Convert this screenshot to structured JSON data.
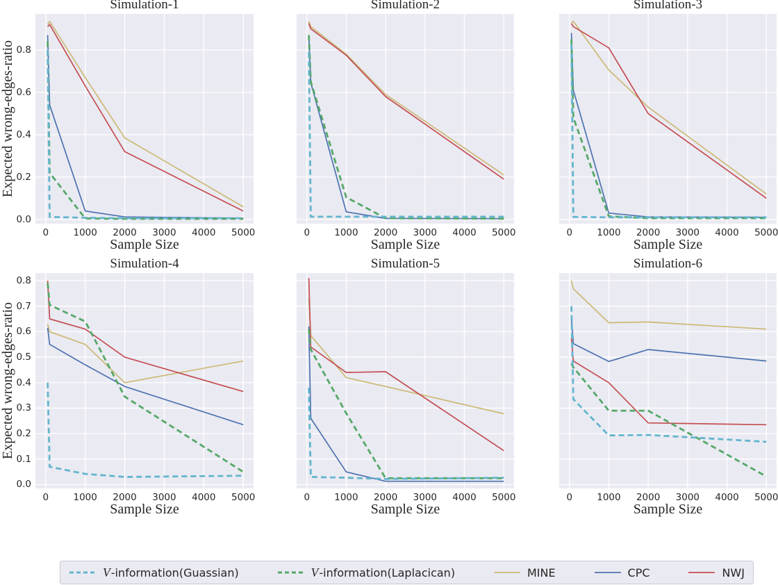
{
  "legend": {
    "entries": [
      {
        "id": "gaussian",
        "cal": "V",
        "text": "-information(Guassian)",
        "color": "#64B5CD",
        "dashed": true
      },
      {
        "id": "laplacian",
        "cal": "V",
        "text": "-information(Laplacican)",
        "color": "#55A868",
        "dashed": true
      },
      {
        "id": "mine",
        "cal": "",
        "text": "MINE",
        "color": "#CCB974",
        "dashed": false
      },
      {
        "id": "cpc",
        "cal": "",
        "text": "CPC",
        "color": "#4C72B0",
        "dashed": false
      },
      {
        "id": "nwj",
        "cal": "",
        "text": "NWJ",
        "color": "#C44E52",
        "dashed": false
      }
    ],
    "position": "lower center"
  },
  "chart_data": [
    {
      "type": "line",
      "title": "Simulation-1",
      "xlabel": "Sample Size",
      "ylabel": "Expected wrong-edges-ratio",
      "x": [
        50,
        100,
        1000,
        2000,
        5000
      ],
      "xlim": [
        -260,
        5260
      ],
      "ylim": [
        -0.02,
        0.97
      ],
      "x_ticks": [
        0,
        1000,
        2000,
        3000,
        4000,
        5000
      ],
      "y_ticks": [
        0.0,
        0.2,
        0.4,
        0.6,
        0.8
      ],
      "grid": true,
      "series": [
        {
          "id": "gaussian",
          "name": "V-information(Guassian)",
          "color": "#64B5CD",
          "style": "dashed",
          "values": [
            0.8,
            0.012,
            0.008,
            0.006,
            0.006
          ]
        },
        {
          "id": "laplacian",
          "name": "V-information(Laplacican)",
          "color": "#55A868",
          "style": "dashed",
          "values": [
            0.84,
            0.22,
            0.005,
            0.003,
            0.003
          ]
        },
        {
          "id": "mine",
          "name": "MINE",
          "color": "#CCB974",
          "style": "solid",
          "values": [
            0.92,
            0.935,
            0.67,
            0.385,
            0.06
          ]
        },
        {
          "id": "cpc",
          "name": "CPC",
          "color": "#4C72B0",
          "style": "solid",
          "values": [
            0.87,
            0.54,
            0.04,
            0.012,
            0.006
          ]
        },
        {
          "id": "nwj",
          "name": "NWJ",
          "color": "#C44E52",
          "style": "solid",
          "values": [
            0.91,
            0.92,
            0.63,
            0.32,
            0.04
          ]
        }
      ]
    },
    {
      "type": "line",
      "title": "Simulation-2",
      "xlabel": "Sample Size",
      "x": [
        50,
        100,
        1000,
        2000,
        5000
      ],
      "xlim": [
        -260,
        5260
      ],
      "ylim": [
        -0.02,
        0.97
      ],
      "x_ticks": [
        0,
        1000,
        2000,
        3000,
        4000,
        5000
      ],
      "y_ticks": [
        0.0,
        0.2,
        0.4,
        0.6,
        0.8
      ],
      "grid": true,
      "series": [
        {
          "id": "gaussian",
          "name": "V-information(Guassian)",
          "color": "#64B5CD",
          "style": "dashed",
          "values": [
            0.79,
            0.013,
            0.013,
            0.013,
            0.013
          ]
        },
        {
          "id": "laplacian",
          "name": "V-information(Laplacican)",
          "color": "#55A868",
          "style": "dashed",
          "values": [
            0.87,
            0.65,
            0.105,
            0.006,
            0.004
          ]
        },
        {
          "id": "mine",
          "name": "MINE",
          "color": "#CCB974",
          "style": "solid",
          "values": [
            0.935,
            0.91,
            0.78,
            0.59,
            0.21
          ]
        },
        {
          "id": "cpc",
          "name": "CPC",
          "color": "#4C72B0",
          "style": "solid",
          "values": [
            0.87,
            0.645,
            0.036,
            0.005,
            0.004
          ]
        },
        {
          "id": "nwj",
          "name": "NWJ",
          "color": "#C44E52",
          "style": "solid",
          "values": [
            0.925,
            0.9,
            0.775,
            0.58,
            0.19
          ]
        }
      ]
    },
    {
      "type": "line",
      "title": "Simulation-3",
      "xlabel": "Sample Size",
      "x": [
        50,
        100,
        1000,
        2000,
        5000
      ],
      "xlim": [
        -260,
        5260
      ],
      "ylim": [
        -0.02,
        0.97
      ],
      "x_ticks": [
        0,
        1000,
        2000,
        3000,
        4000,
        5000
      ],
      "y_ticks": [
        0.0,
        0.2,
        0.4,
        0.6,
        0.8
      ],
      "grid": true,
      "series": [
        {
          "id": "gaussian",
          "name": "V-information(Guassian)",
          "color": "#64B5CD",
          "style": "dashed",
          "values": [
            0.825,
            0.012,
            0.01,
            0.01,
            0.01
          ]
        },
        {
          "id": "laplacian",
          "name": "V-information(Laplacican)",
          "color": "#55A868",
          "style": "dashed",
          "values": [
            0.85,
            0.48,
            0.015,
            0.006,
            0.006
          ]
        },
        {
          "id": "mine",
          "name": "MINE",
          "color": "#CCB974",
          "style": "solid",
          "values": [
            0.93,
            0.935,
            0.705,
            0.53,
            0.12
          ]
        },
        {
          "id": "cpc",
          "name": "CPC",
          "color": "#4C72B0",
          "style": "solid",
          "values": [
            0.88,
            0.61,
            0.03,
            0.012,
            0.01
          ]
        },
        {
          "id": "nwj",
          "name": "NWJ",
          "color": "#C44E52",
          "style": "solid",
          "values": [
            0.925,
            0.91,
            0.81,
            0.5,
            0.1
          ]
        }
      ]
    },
    {
      "type": "line",
      "title": "Simulation-4",
      "xlabel": "Sample Size",
      "ylabel": "Expected wrong-edges-ratio",
      "x": [
        50,
        100,
        1000,
        2000,
        5000
      ],
      "xlim": [
        -260,
        5260
      ],
      "ylim": [
        -0.015,
        0.83
      ],
      "x_ticks": [
        0,
        1000,
        2000,
        3000,
        4000,
        5000
      ],
      "y_ticks": [
        0.0,
        0.1,
        0.2,
        0.3,
        0.4,
        0.5,
        0.6,
        0.7,
        0.8
      ],
      "grid": true,
      "series": [
        {
          "id": "gaussian",
          "name": "V-information(Guassian)",
          "color": "#64B5CD",
          "style": "dashed",
          "values": [
            0.4,
            0.07,
            0.042,
            0.03,
            0.035
          ]
        },
        {
          "id": "laplacian",
          "name": "V-information(Laplacican)",
          "color": "#55A868",
          "style": "dashed",
          "values": [
            0.79,
            0.705,
            0.64,
            0.345,
            0.05
          ]
        },
        {
          "id": "mine",
          "name": "MINE",
          "color": "#CCB974",
          "style": "solid",
          "values": [
            0.63,
            0.6,
            0.55,
            0.4,
            0.485
          ]
        },
        {
          "id": "cpc",
          "name": "CPC",
          "color": "#4C72B0",
          "style": "solid",
          "values": [
            0.615,
            0.55,
            0.47,
            0.385,
            0.235
          ]
        },
        {
          "id": "nwj",
          "name": "NWJ",
          "color": "#C44E52",
          "style": "solid",
          "values": [
            0.8,
            0.65,
            0.61,
            0.5,
            0.365
          ]
        }
      ]
    },
    {
      "type": "line",
      "title": "Simulation-5",
      "xlabel": "Sample Size",
      "x": [
        50,
        100,
        1000,
        2000,
        5000
      ],
      "xlim": [
        -260,
        5260
      ],
      "ylim": [
        -0.015,
        0.83
      ],
      "x_ticks": [
        0,
        1000,
        2000,
        3000,
        4000,
        5000
      ],
      "y_ticks": [
        0.0,
        0.1,
        0.2,
        0.3,
        0.4,
        0.5,
        0.6,
        0.7,
        0.8
      ],
      "grid": true,
      "series": [
        {
          "id": "gaussian",
          "name": "V-information(Guassian)",
          "color": "#64B5CD",
          "style": "dashed",
          "values": [
            0.38,
            0.03,
            0.027,
            0.022,
            0.027
          ]
        },
        {
          "id": "laplacian",
          "name": "V-information(Laplacican)",
          "color": "#55A868",
          "style": "dashed",
          "values": [
            0.61,
            0.53,
            0.28,
            0.025,
            0.025
          ]
        },
        {
          "id": "mine",
          "name": "MINE",
          "color": "#CCB974",
          "style": "solid",
          "values": [
            0.73,
            0.585,
            0.42,
            0.385,
            0.278
          ]
        },
        {
          "id": "cpc",
          "name": "CPC",
          "color": "#4C72B0",
          "style": "solid",
          "values": [
            0.62,
            0.26,
            0.05,
            0.013,
            0.013
          ]
        },
        {
          "id": "nwj",
          "name": "NWJ",
          "color": "#C44E52",
          "style": "solid",
          "values": [
            0.81,
            0.54,
            0.44,
            0.443,
            0.133
          ]
        }
      ]
    },
    {
      "type": "line",
      "title": "Simulation-6",
      "xlabel": "Sample Size",
      "x": [
        50,
        100,
        1000,
        2000,
        5000
      ],
      "xlim": [
        -260,
        5260
      ],
      "ylim": [
        -0.015,
        0.83
      ],
      "x_ticks": [
        0,
        1000,
        2000,
        3000,
        4000,
        5000
      ],
      "y_ticks": [
        0.0,
        0.1,
        0.2,
        0.3,
        0.4,
        0.5,
        0.6,
        0.7,
        0.8
      ],
      "grid": true,
      "series": [
        {
          "id": "gaussian",
          "name": "V-information(Guassian)",
          "color": "#64B5CD",
          "style": "dashed",
          "values": [
            0.7,
            0.335,
            0.193,
            0.195,
            0.168
          ]
        },
        {
          "id": "laplacian",
          "name": "V-information(Laplacican)",
          "color": "#55A868",
          "style": "dashed",
          "values": [
            0.475,
            0.46,
            0.29,
            0.29,
            0.032
          ]
        },
        {
          "id": "mine",
          "name": "MINE",
          "color": "#CCB974",
          "style": "solid",
          "values": [
            0.8,
            0.768,
            0.635,
            0.638,
            0.61
          ]
        },
        {
          "id": "cpc",
          "name": "CPC",
          "color": "#4C72B0",
          "style": "solid",
          "values": [
            0.655,
            0.553,
            0.483,
            0.53,
            0.485
          ]
        },
        {
          "id": "nwj",
          "name": "NWJ",
          "color": "#C44E52",
          "style": "solid",
          "values": [
            0.575,
            0.485,
            0.4,
            0.242,
            0.235
          ]
        }
      ]
    }
  ],
  "style": {
    "axes_background": "#EAEAF2",
    "grid_color": "#FFFFFF",
    "text_color": "#262626"
  }
}
